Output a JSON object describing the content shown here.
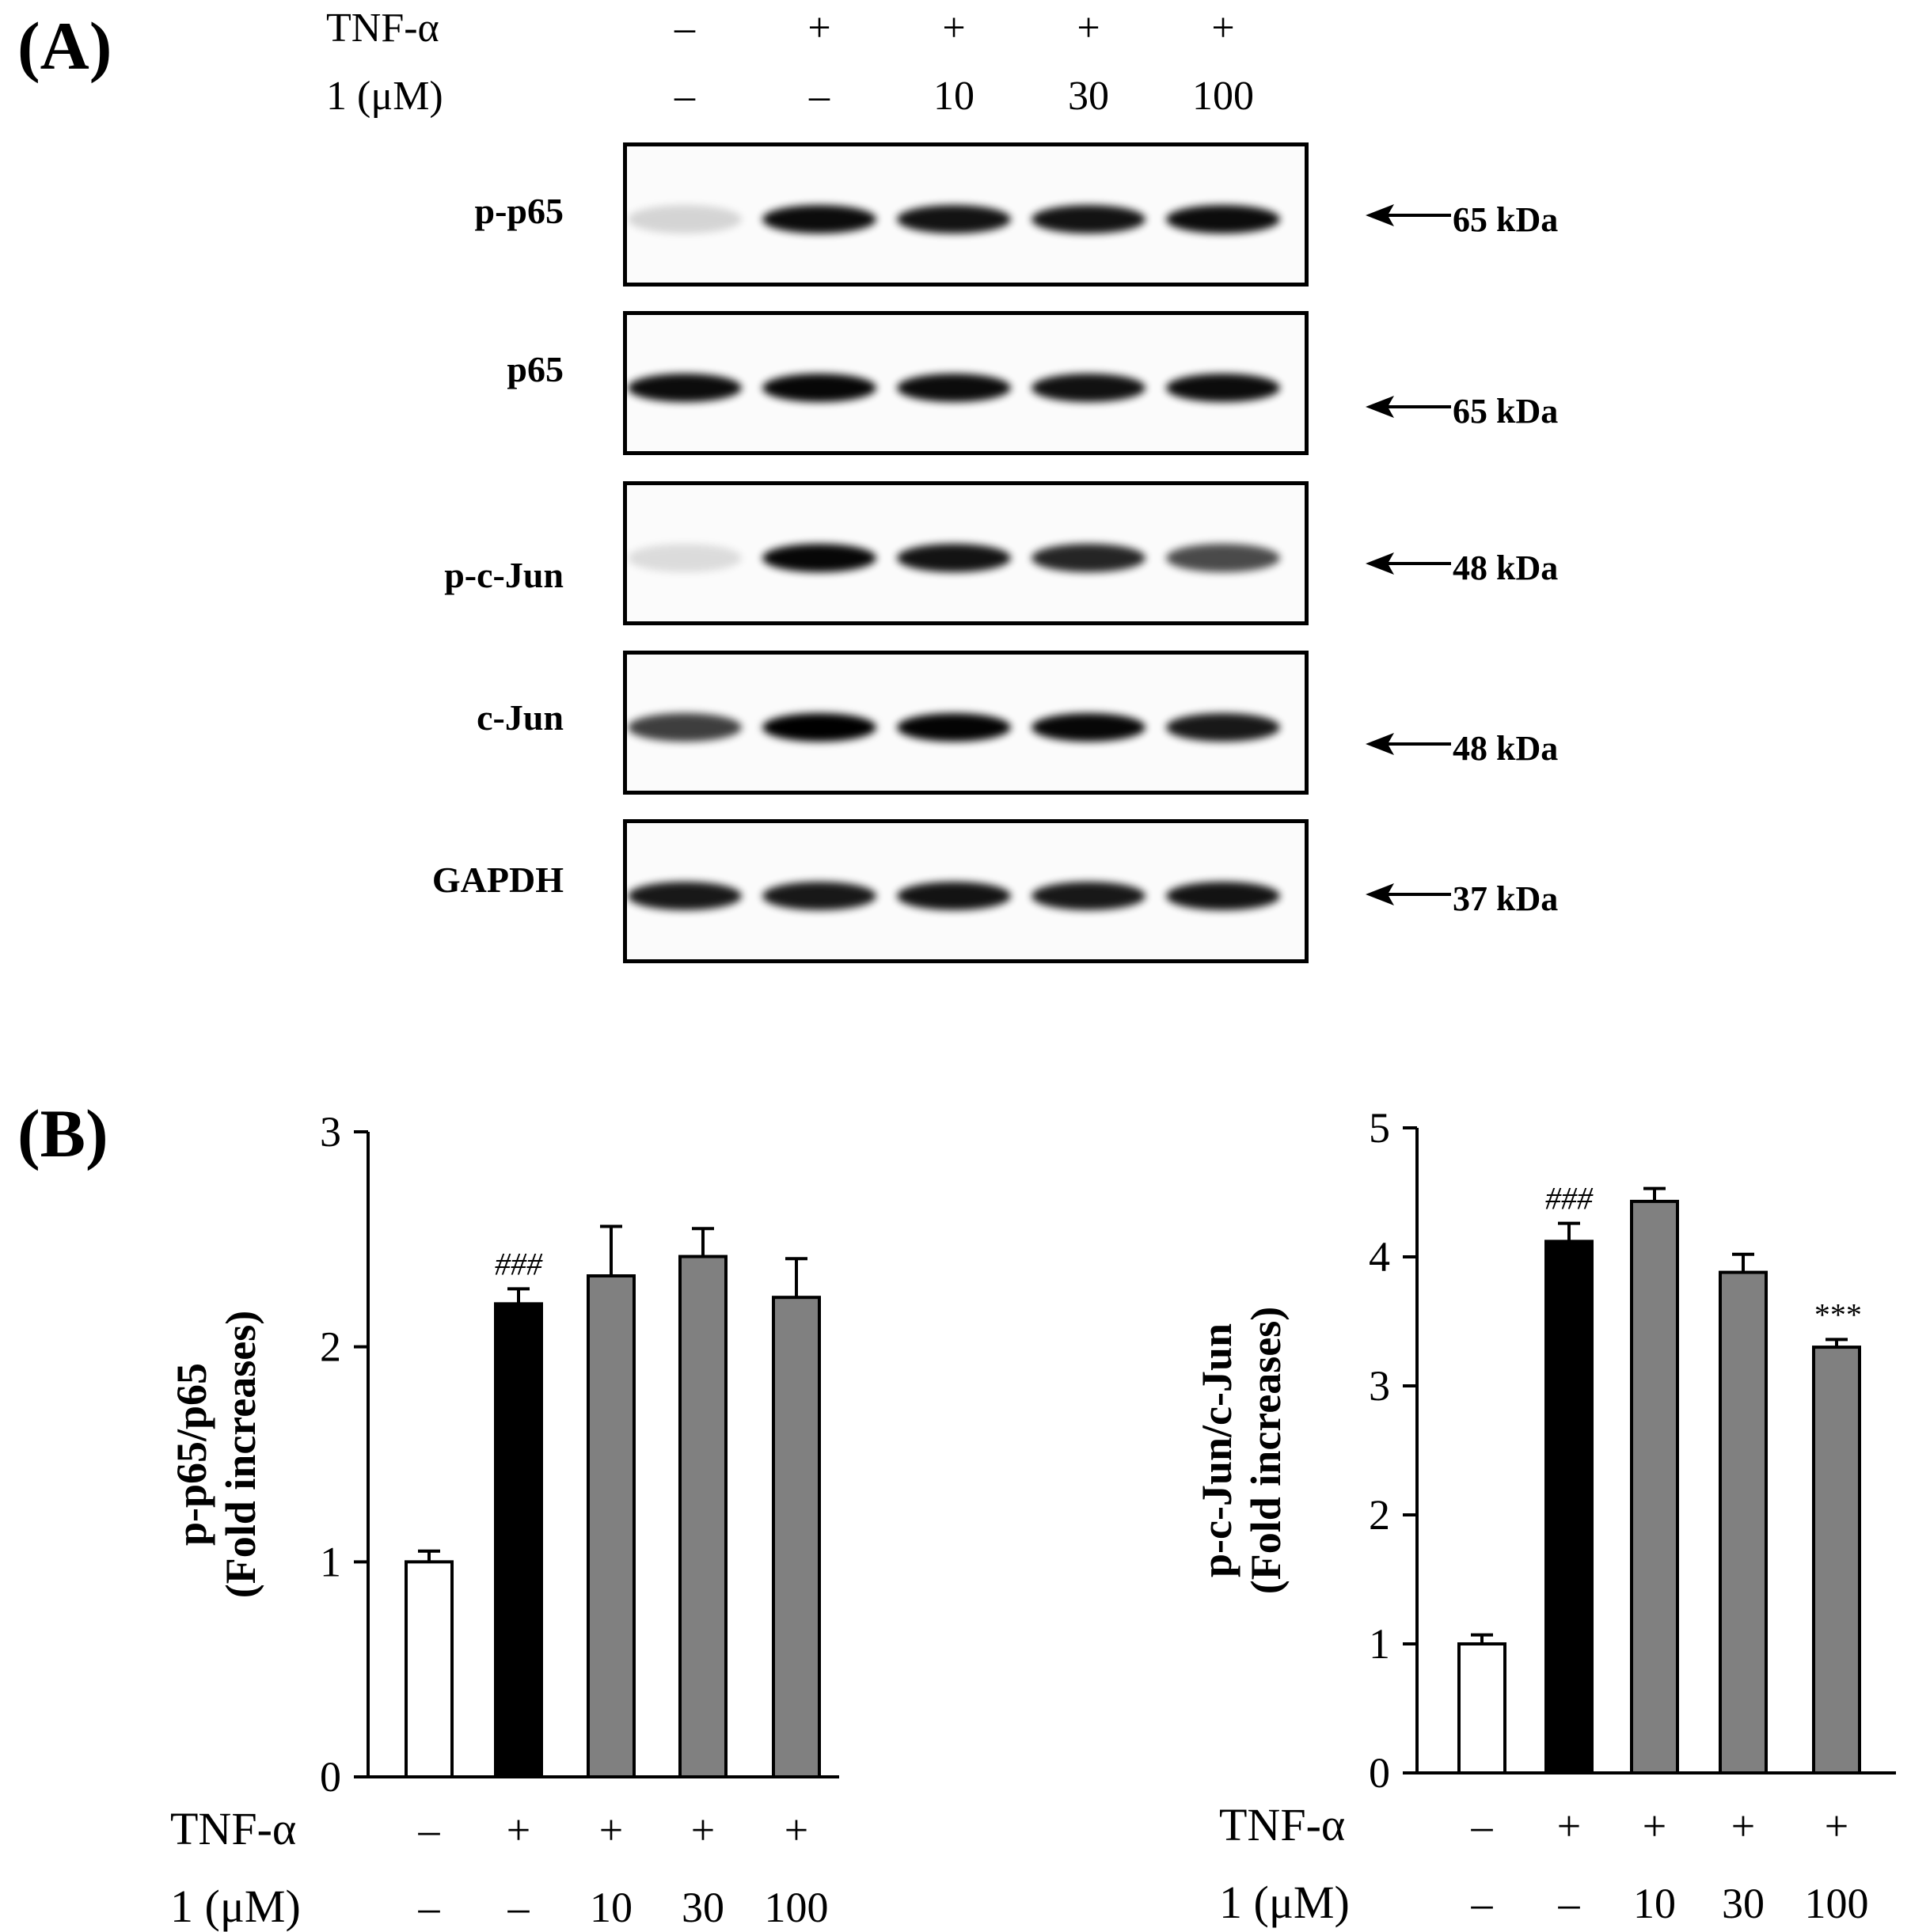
{
  "panel_a": {
    "label": "(A)",
    "conditions": {
      "tnf_label": "TNF-α",
      "dose_label": "1 (μM)",
      "tnf": [
        "–",
        "+",
        "+",
        "+",
        "+"
      ],
      "dose": [
        "–",
        "–",
        "10",
        "30",
        "100"
      ]
    },
    "blots": [
      {
        "label": "p-p65",
        "size": "65 kDa",
        "intensity": [
          0.15,
          0.95,
          0.92,
          0.92,
          0.95
        ]
      },
      {
        "label": "p65",
        "size": "65 kDa",
        "intensity": [
          0.95,
          0.97,
          0.95,
          0.93,
          0.95
        ]
      },
      {
        "label": "p-c-Jun",
        "size": "48 kDa",
        "intensity": [
          0.12,
          0.97,
          0.92,
          0.85,
          0.7
        ]
      },
      {
        "label": "c-Jun",
        "size": "48 kDa",
        "intensity": [
          0.75,
          1.0,
          0.98,
          0.97,
          0.9
        ]
      },
      {
        "label": "GAPDH",
        "size": "37 kDa",
        "intensity": [
          0.9,
          0.9,
          0.92,
          0.9,
          0.92
        ]
      }
    ]
  },
  "panel_b": {
    "label": "(B)",
    "conditions": {
      "tnf_label": "TNF-α",
      "dose_label": "1 (μM)",
      "tnf": [
        "–",
        "+",
        "+",
        "+",
        "+"
      ],
      "dose": [
        "–",
        "–",
        "10",
        "30",
        "100"
      ]
    }
  },
  "colors": {
    "control": "#ffffff",
    "tnf": "#000000",
    "treated": "#808080"
  },
  "chart_data": [
    {
      "type": "bar",
      "ylabel_line1": "p-p65/p65",
      "ylabel_line2": "(Fold increases)",
      "ylim": [
        0,
        3
      ],
      "yticks": [
        "0",
        "1",
        "2",
        "3"
      ],
      "values": [
        1.0,
        2.2,
        2.33,
        2.42,
        2.23
      ],
      "errors": [
        0.05,
        0.07,
        0.23,
        0.13,
        0.18
      ],
      "annotations": [
        "",
        "###",
        "",
        "",
        ""
      ],
      "bar_colors": [
        "control",
        "tnf",
        "treated",
        "treated",
        "treated"
      ]
    },
    {
      "type": "bar",
      "ylabel_line1": "p-c-Jun/c-Jun",
      "ylabel_line2": "(Fold increases)",
      "ylim": [
        0,
        5
      ],
      "yticks": [
        "0",
        "1",
        "2",
        "3",
        "4",
        "5"
      ],
      "values": [
        1.0,
        4.12,
        4.43,
        3.88,
        3.3
      ],
      "errors": [
        0.07,
        0.14,
        0.1,
        0.14,
        0.06
      ],
      "annotations": [
        "",
        "###",
        "",
        "",
        "***"
      ],
      "bar_colors": [
        "control",
        "tnf",
        "treated",
        "treated",
        "treated"
      ]
    }
  ]
}
